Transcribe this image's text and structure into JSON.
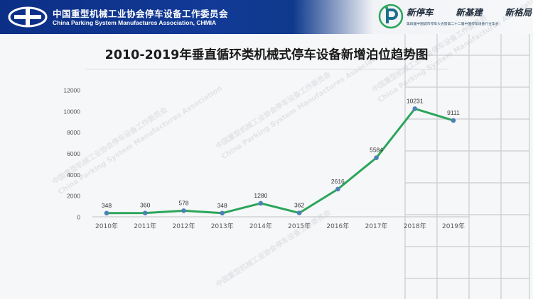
{
  "header": {
    "assoc_cn": "中国重型机械工业协会停车设备工作委员会",
    "assoc_en": "China Parking System Manufactures Association, CHMIA",
    "slogans": [
      "新停车",
      "新基建",
      "新格局"
    ],
    "slogan_sub": "第四届中国城市停车大会暨第二十二届中国停车设备行业年会"
  },
  "watermarks": [
    "中国重型机械工业协会停车设备工作委员会",
    "China Parking System Manufactures Association"
  ],
  "colors": {
    "header_blue": "#0c2f86",
    "line": "#2aa55a",
    "marker": "#4f7fb8"
  },
  "chart_data": {
    "type": "line",
    "title": "2010-2019年垂直循环类机械式停车设备新增泊位趋势图",
    "categories": [
      "2010年",
      "2011年",
      "2012年",
      "2013年",
      "2014年",
      "2015年",
      "2016年",
      "2017年",
      "2018年",
      "2019年"
    ],
    "series": [
      {
        "values": [
          348,
          360,
          578,
          348,
          1280,
          362,
          2616,
          5584,
          10231,
          9111
        ]
      }
    ],
    "data_labels": [
      "348",
      "360",
      "578",
      "348",
      "1280",
      "362",
      "2616",
      "5584",
      "10231",
      "9111"
    ],
    "y_ticks": [
      "0",
      "2000",
      "4000",
      "6000",
      "8000",
      "10000",
      "12000"
    ],
    "ylim": [
      0,
      12000
    ],
    "xlabel": "",
    "ylabel": "",
    "grid": false,
    "legend": "none"
  }
}
